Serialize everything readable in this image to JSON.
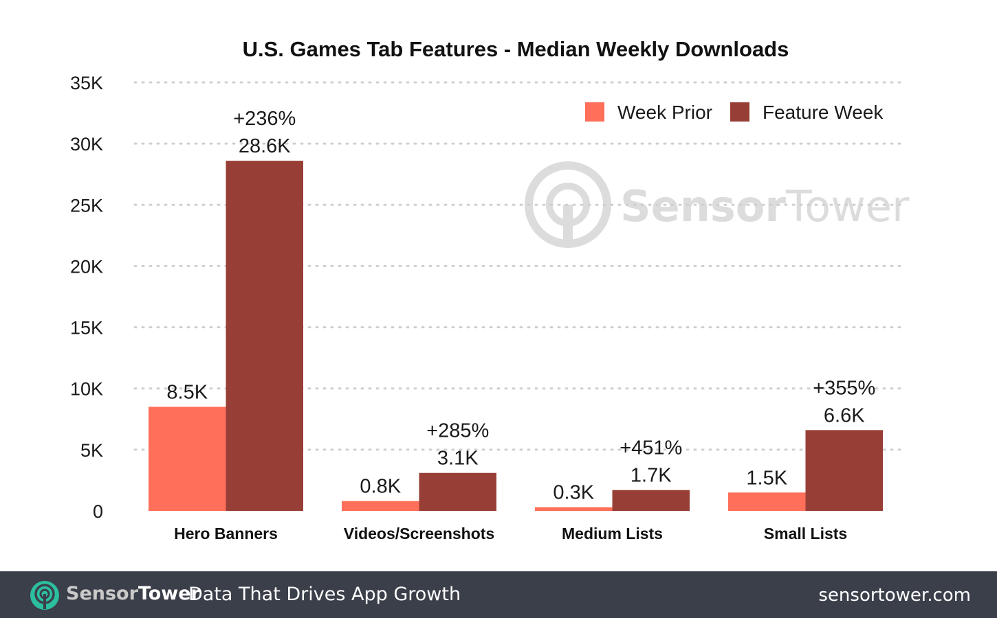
{
  "chart_data": {
    "type": "bar",
    "title": "U.S. Games Tab Features - Median Weekly Downloads",
    "categories": [
      "Hero Banners",
      "Videos/Screenshots",
      "Medium Lists",
      "Small Lists"
    ],
    "series": [
      {
        "name": "Week Prior",
        "color": "#ff6f59",
        "values": [
          8.5,
          0.8,
          0.3,
          1.5
        ],
        "labels": [
          "8.5K",
          "0.8K",
          "0.3K",
          "1.5K"
        ]
      },
      {
        "name": "Feature Week",
        "color": "#973f36",
        "values": [
          28.6,
          3.1,
          1.7,
          6.6
        ],
        "labels": [
          "28.6K",
          "3.1K",
          "1.7K",
          "6.6K"
        ]
      }
    ],
    "change_labels": [
      "+236%",
      "+285%",
      "+451%",
      "+355%"
    ],
    "y_ticks": [
      0,
      5,
      10,
      15,
      20,
      25,
      30,
      35
    ],
    "y_tick_labels": [
      "0",
      "5K",
      "10K",
      "15K",
      "20K",
      "25K",
      "30K",
      "35K"
    ],
    "ylim": [
      0,
      35
    ],
    "y_unit": "thousands of downloads",
    "grid": true,
    "grid_style": "dotted",
    "legend_position": "top-right"
  },
  "watermark": {
    "text_part1": "Sensor",
    "text_part2": "Tower",
    "icon": "sensortower-logo-icon"
  },
  "footer": {
    "brand_part1": "Sensor",
    "brand_part2": "Tower",
    "tagline": "Data That Drives App Growth",
    "website": "sensortower.com",
    "background": "#3b3f4a",
    "icon": "sensortower-logo-icon",
    "icon_color": "#2bbfa0"
  }
}
